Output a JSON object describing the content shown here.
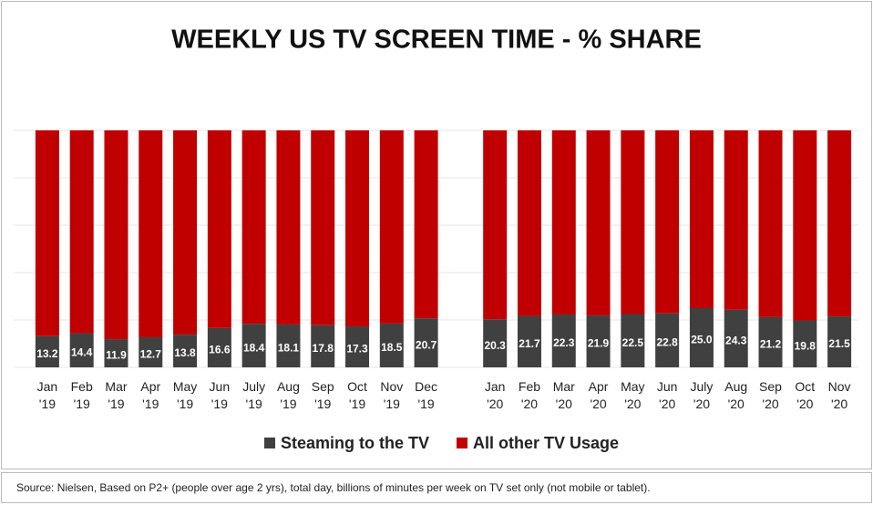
{
  "chart_data": {
    "type": "stacked_bar_100",
    "title": "WEEKLY US TV SCREEN TIME - % SHARE",
    "categories": [
      "Jan '19",
      "Feb '19",
      "Mar '19",
      "Apr '19",
      "May '19",
      "Jun '19",
      "July '19",
      "Aug '19",
      "Sep '19",
      "Oct '19",
      "Nov '19",
      "Dec '19",
      null,
      "Jan '20",
      "Feb '20",
      "Mar '20",
      "Apr '20",
      "May '20",
      "Jun '20",
      "July '20",
      "Aug '20",
      "Sep '20",
      "Oct '20",
      "Nov '20"
    ],
    "series": [
      {
        "name": "Steaming to the TV",
        "color": "#404040",
        "values": [
          13.2,
          14.4,
          11.9,
          12.7,
          13.8,
          16.6,
          18.4,
          18.1,
          17.8,
          17.3,
          18.5,
          20.7,
          null,
          20.3,
          21.7,
          22.3,
          21.9,
          22.5,
          22.8,
          25,
          24.3,
          21.2,
          19.8,
          21.5
        ],
        "value_labels": [
          "13.2",
          "14.4",
          "11.9",
          "12.7",
          "13.8",
          "16.6",
          "18.4",
          "18.1",
          "17.8",
          "17.3",
          "18.5",
          "20.7",
          null,
          "20.3",
          "21.7",
          "22.3",
          "21.9",
          "22.5",
          "22.8",
          "25.0",
          "24.3",
          "21.2",
          "19.8",
          "21.5"
        ]
      },
      {
        "name": "All other TV Usage",
        "color": "#c00000",
        "values": [
          86.8,
          85.6,
          88.1,
          87.3,
          86.2,
          83.4,
          81.6,
          81.9,
          82.2,
          82.7,
          81.5,
          79.3,
          null,
          79.7,
          78.3,
          77.7,
          78.1,
          77.5,
          77.2,
          75,
          75.7,
          78.8,
          80.2,
          78.5
        ]
      }
    ],
    "ylim": [
      0,
      100
    ],
    "yticks": [
      0,
      20,
      40,
      60,
      80,
      100
    ],
    "grid": true,
    "source": "Source: Nielsen, Based on P2+ (people over age 2 yrs), total day, billions of minutes per week on TV set only (not mobile or tablet)."
  }
}
